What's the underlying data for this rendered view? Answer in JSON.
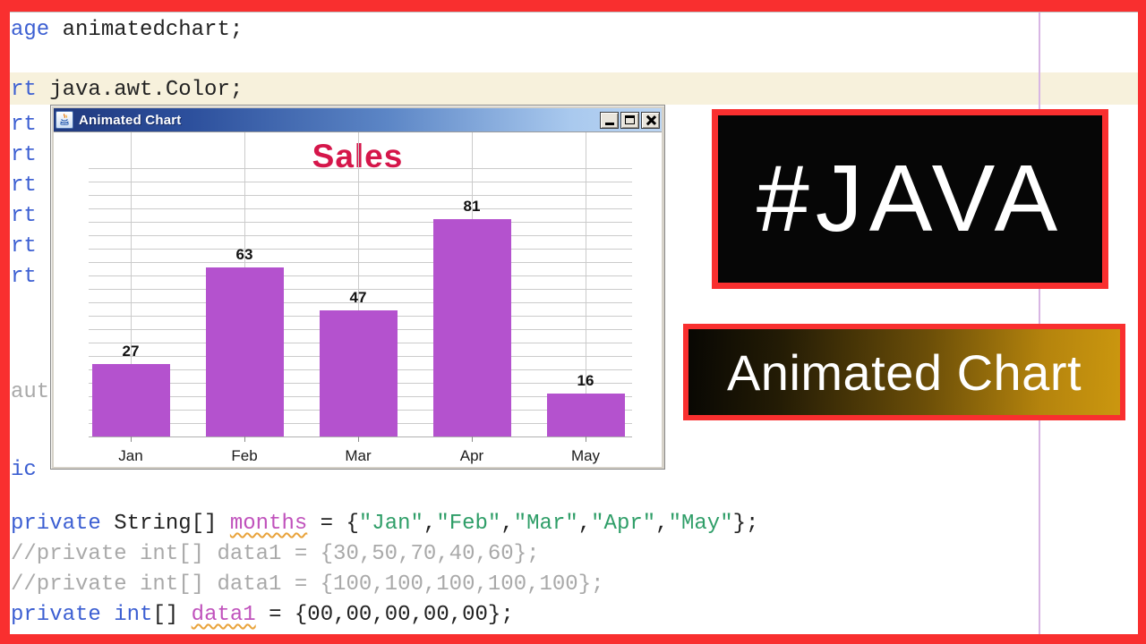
{
  "colors": {
    "frame_red": "#f92f2f",
    "bar_purple": "#b452ce",
    "chart_title_red": "#d5164a",
    "keyword_blue": "#3c5fd2",
    "string_green": "#2f9e68",
    "field_magenta": "#c052bc",
    "comment_gray": "#a9a9a9",
    "line_highlight": "#f7f1dc",
    "banner_gold": "#cb970f"
  },
  "editor": {
    "top_lines": [
      {
        "highlight": false,
        "segments": [
          [
            "age",
            "kw"
          ],
          [
            " animatedchart;",
            "plain"
          ]
        ]
      },
      {
        "highlight": true,
        "segments": [
          [
            "rt",
            "kw"
          ],
          [
            " java.awt.Color;",
            "plain"
          ]
        ]
      }
    ],
    "left_tokens": [
      {
        "text": "rt",
        "cls": "kw"
      },
      {
        "text": "rt",
        "cls": "kw"
      },
      {
        "text": "rt",
        "cls": "kw"
      },
      {
        "text": "rt",
        "cls": "kw"
      },
      {
        "text": "rt",
        "cls": "kw"
      },
      {
        "text": "rt",
        "cls": "kw"
      },
      {
        "text": "aut",
        "cls": "comment"
      },
      {
        "text": "ic",
        "cls": "kw"
      }
    ],
    "bottom_lines": [
      {
        "segments": [
          [
            "private",
            "kw"
          ],
          [
            " String[] ",
            "plain"
          ],
          [
            "months",
            "field"
          ],
          [
            " = {",
            "plain"
          ],
          [
            "\"Jan\"",
            "str"
          ],
          [
            ",",
            "plain"
          ],
          [
            "\"Feb\"",
            "str"
          ],
          [
            ",",
            "plain"
          ],
          [
            "\"Mar\"",
            "str"
          ],
          [
            ",",
            "plain"
          ],
          [
            "\"Apr\"",
            "str"
          ],
          [
            ",",
            "plain"
          ],
          [
            "\"May\"",
            "str"
          ],
          [
            "};",
            "plain"
          ]
        ]
      },
      {
        "segments": [
          [
            "//private int[] data1 = {30,50,70,40,60};",
            "comment"
          ]
        ]
      },
      {
        "segments": [
          [
            "//private int[] data1 = {100,100,100,100,100};",
            "comment"
          ]
        ]
      },
      {
        "segments": [
          [
            "private",
            "kw"
          ],
          [
            " ",
            "plain"
          ],
          [
            "int",
            "kw"
          ],
          [
            "[] ",
            "plain"
          ],
          [
            "data1",
            "field"
          ],
          [
            " = {00,00,00,00,00};",
            "plain"
          ]
        ]
      }
    ]
  },
  "window": {
    "title": "Animated Chart",
    "icon": "java-coffee-cup-icon",
    "controls": [
      "minimize",
      "maximize",
      "close"
    ]
  },
  "chart_data": {
    "type": "bar",
    "title": "Sales",
    "categories": [
      "Jan",
      "Feb",
      "Mar",
      "Apr",
      "May"
    ],
    "values": [
      27,
      63,
      47,
      81,
      16
    ],
    "ylim": [
      0,
      100
    ],
    "gridline_step": 5,
    "grid": true,
    "legend": false,
    "bar_color": "#b452ce",
    "title_color": "#d5164a"
  },
  "badges": {
    "hashtag": "#JAVA",
    "banner_label": "Animated Chart"
  }
}
